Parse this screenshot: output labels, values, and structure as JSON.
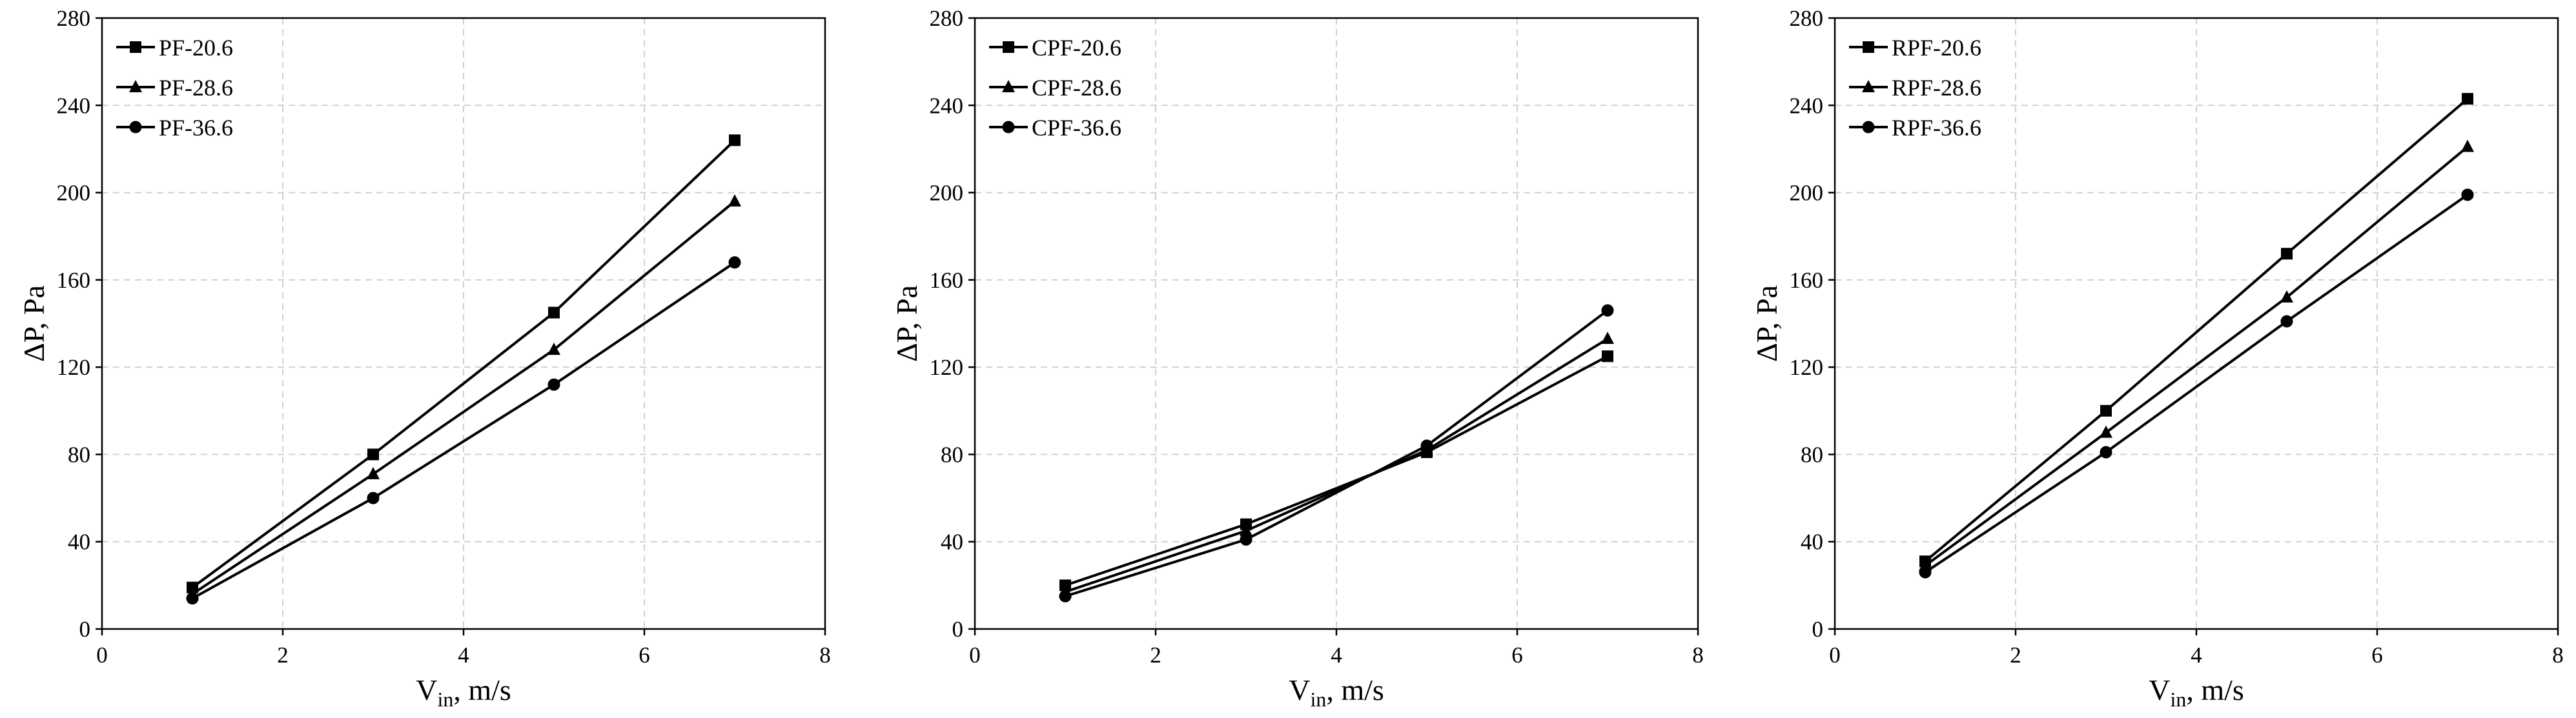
{
  "chart_data": [
    {
      "type": "line",
      "title": "",
      "xlabel_main": "V",
      "xlabel_sub": "in",
      "xlabel_rest": ", m/s",
      "ylabel": "ΔP, Pa",
      "xlim": [
        0,
        8
      ],
      "ylim": [
        0,
        280
      ],
      "xticks": [
        0,
        2,
        4,
        6,
        8
      ],
      "yticks": [
        0,
        40,
        80,
        120,
        160,
        200,
        240,
        280
      ],
      "grid": true,
      "legend_position": "top-left",
      "x": [
        1,
        3,
        5,
        7
      ],
      "series": [
        {
          "name": "PF-20.6",
          "marker": "square",
          "values": [
            19,
            80,
            145,
            224
          ]
        },
        {
          "name": "PF-28.6",
          "marker": "triangle",
          "values": [
            16,
            71,
            128,
            196
          ]
        },
        {
          "name": "PF-36.6",
          "marker": "circle",
          "values": [
            14,
            60,
            112,
            168
          ]
        }
      ]
    },
    {
      "type": "line",
      "title": "",
      "xlabel_main": "V",
      "xlabel_sub": "in",
      "xlabel_rest": ", m/s",
      "ylabel": "ΔP, Pa",
      "xlim": [
        0,
        8
      ],
      "ylim": [
        0,
        280
      ],
      "xticks": [
        0,
        2,
        4,
        6,
        8
      ],
      "yticks": [
        0,
        40,
        80,
        120,
        160,
        200,
        240,
        280
      ],
      "grid": true,
      "legend_position": "top-left",
      "x": [
        1,
        3,
        5,
        7
      ],
      "series": [
        {
          "name": "CPF-20.6",
          "marker": "square",
          "values": [
            20,
            48,
            81,
            125
          ]
        },
        {
          "name": "CPF-28.6",
          "marker": "triangle",
          "values": [
            17,
            45,
            82,
            133
          ]
        },
        {
          "name": "CPF-36.6",
          "marker": "circle",
          "values": [
            15,
            41,
            84,
            146
          ]
        }
      ]
    },
    {
      "type": "line",
      "title": "",
      "xlabel_main": "V",
      "xlabel_sub": "in",
      "xlabel_rest": ", m/s",
      "ylabel": "ΔP, Pa",
      "xlim": [
        0,
        8
      ],
      "ylim": [
        0,
        280
      ],
      "xticks": [
        0,
        2,
        4,
        6,
        8
      ],
      "yticks": [
        0,
        40,
        80,
        120,
        160,
        200,
        240,
        280
      ],
      "grid": true,
      "legend_position": "top-left",
      "x": [
        1,
        3,
        5,
        7
      ],
      "series": [
        {
          "name": "RPF-20.6",
          "marker": "square",
          "values": [
            31,
            100,
            172,
            243
          ]
        },
        {
          "name": "RPF-28.6",
          "marker": "triangle",
          "values": [
            29,
            90,
            152,
            221
          ]
        },
        {
          "name": "RPF-36.6",
          "marker": "circle",
          "values": [
            26,
            81,
            141,
            199
          ]
        }
      ]
    }
  ]
}
